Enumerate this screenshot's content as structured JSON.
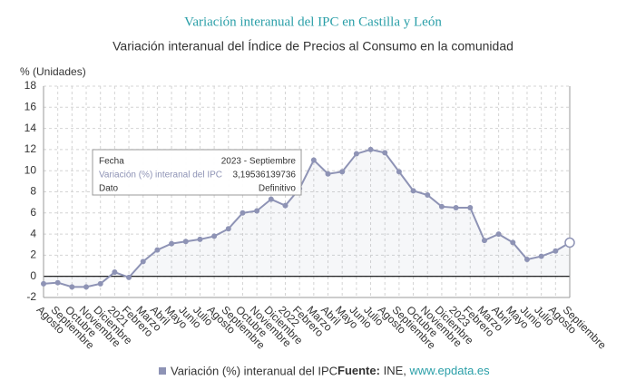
{
  "chart_data": {
    "type": "line",
    "title": "Variación interanual del IPC en Castilla y León",
    "subtitle": "Variación interanual del Índice de Precios al Consumo en la comunidad",
    "y_label": "% (Unidades)",
    "categories": [
      "Agosto",
      "Septiembre",
      "Octubre",
      "Noviembre",
      "Diciembre",
      "2021",
      "Febrero",
      "Marzo",
      "Abril",
      "Mayo",
      "Junio",
      "Julio",
      "Agosto",
      "Septiembre",
      "Octubre",
      "Noviembre",
      "Diciembre",
      "2022",
      "Febrero",
      "Marzo",
      "Abril",
      "Mayo",
      "Junio",
      "Julio",
      "Agosto",
      "Septiembre",
      "Octubre",
      "Noviembre",
      "Diciembre",
      "2023",
      "Febrero",
      "Marzo",
      "Abril",
      "Mayo",
      "Junio",
      "Julio",
      "Agosto",
      "Septiembre"
    ],
    "series": [
      {
        "name": "Variación (%) interanual del IPC",
        "color": "#8e93b5",
        "values": [
          -0.7,
          -0.6,
          -1.0,
          -1.0,
          -0.7,
          0.4,
          -0.1,
          1.4,
          2.5,
          3.1,
          3.3,
          3.5,
          3.8,
          4.5,
          6.0,
          6.2,
          7.3,
          6.7,
          8.3,
          11.0,
          9.7,
          9.9,
          11.6,
          12.0,
          11.7,
          9.9,
          8.1,
          7.7,
          6.6,
          6.5,
          6.5,
          3.4,
          4.0,
          3.2,
          1.6,
          1.9,
          2.4,
          3.19536139736
        ]
      }
    ],
    "ylim": [
      -2,
      18
    ],
    "yticks": [
      -2,
      0,
      2,
      4,
      6,
      8,
      10,
      12,
      14,
      16,
      18
    ],
    "grid": true,
    "tooltip": {
      "rows": [
        [
          "Fecha",
          "2023 - Septiembre"
        ],
        [
          "Variación (%) interanal del IPC",
          "3,19536139736"
        ],
        [
          "Dato",
          "Definitivo"
        ]
      ]
    },
    "source": {
      "label": "Fuente:",
      "text": "INE,",
      "link": "www.epdata.es"
    }
  }
}
